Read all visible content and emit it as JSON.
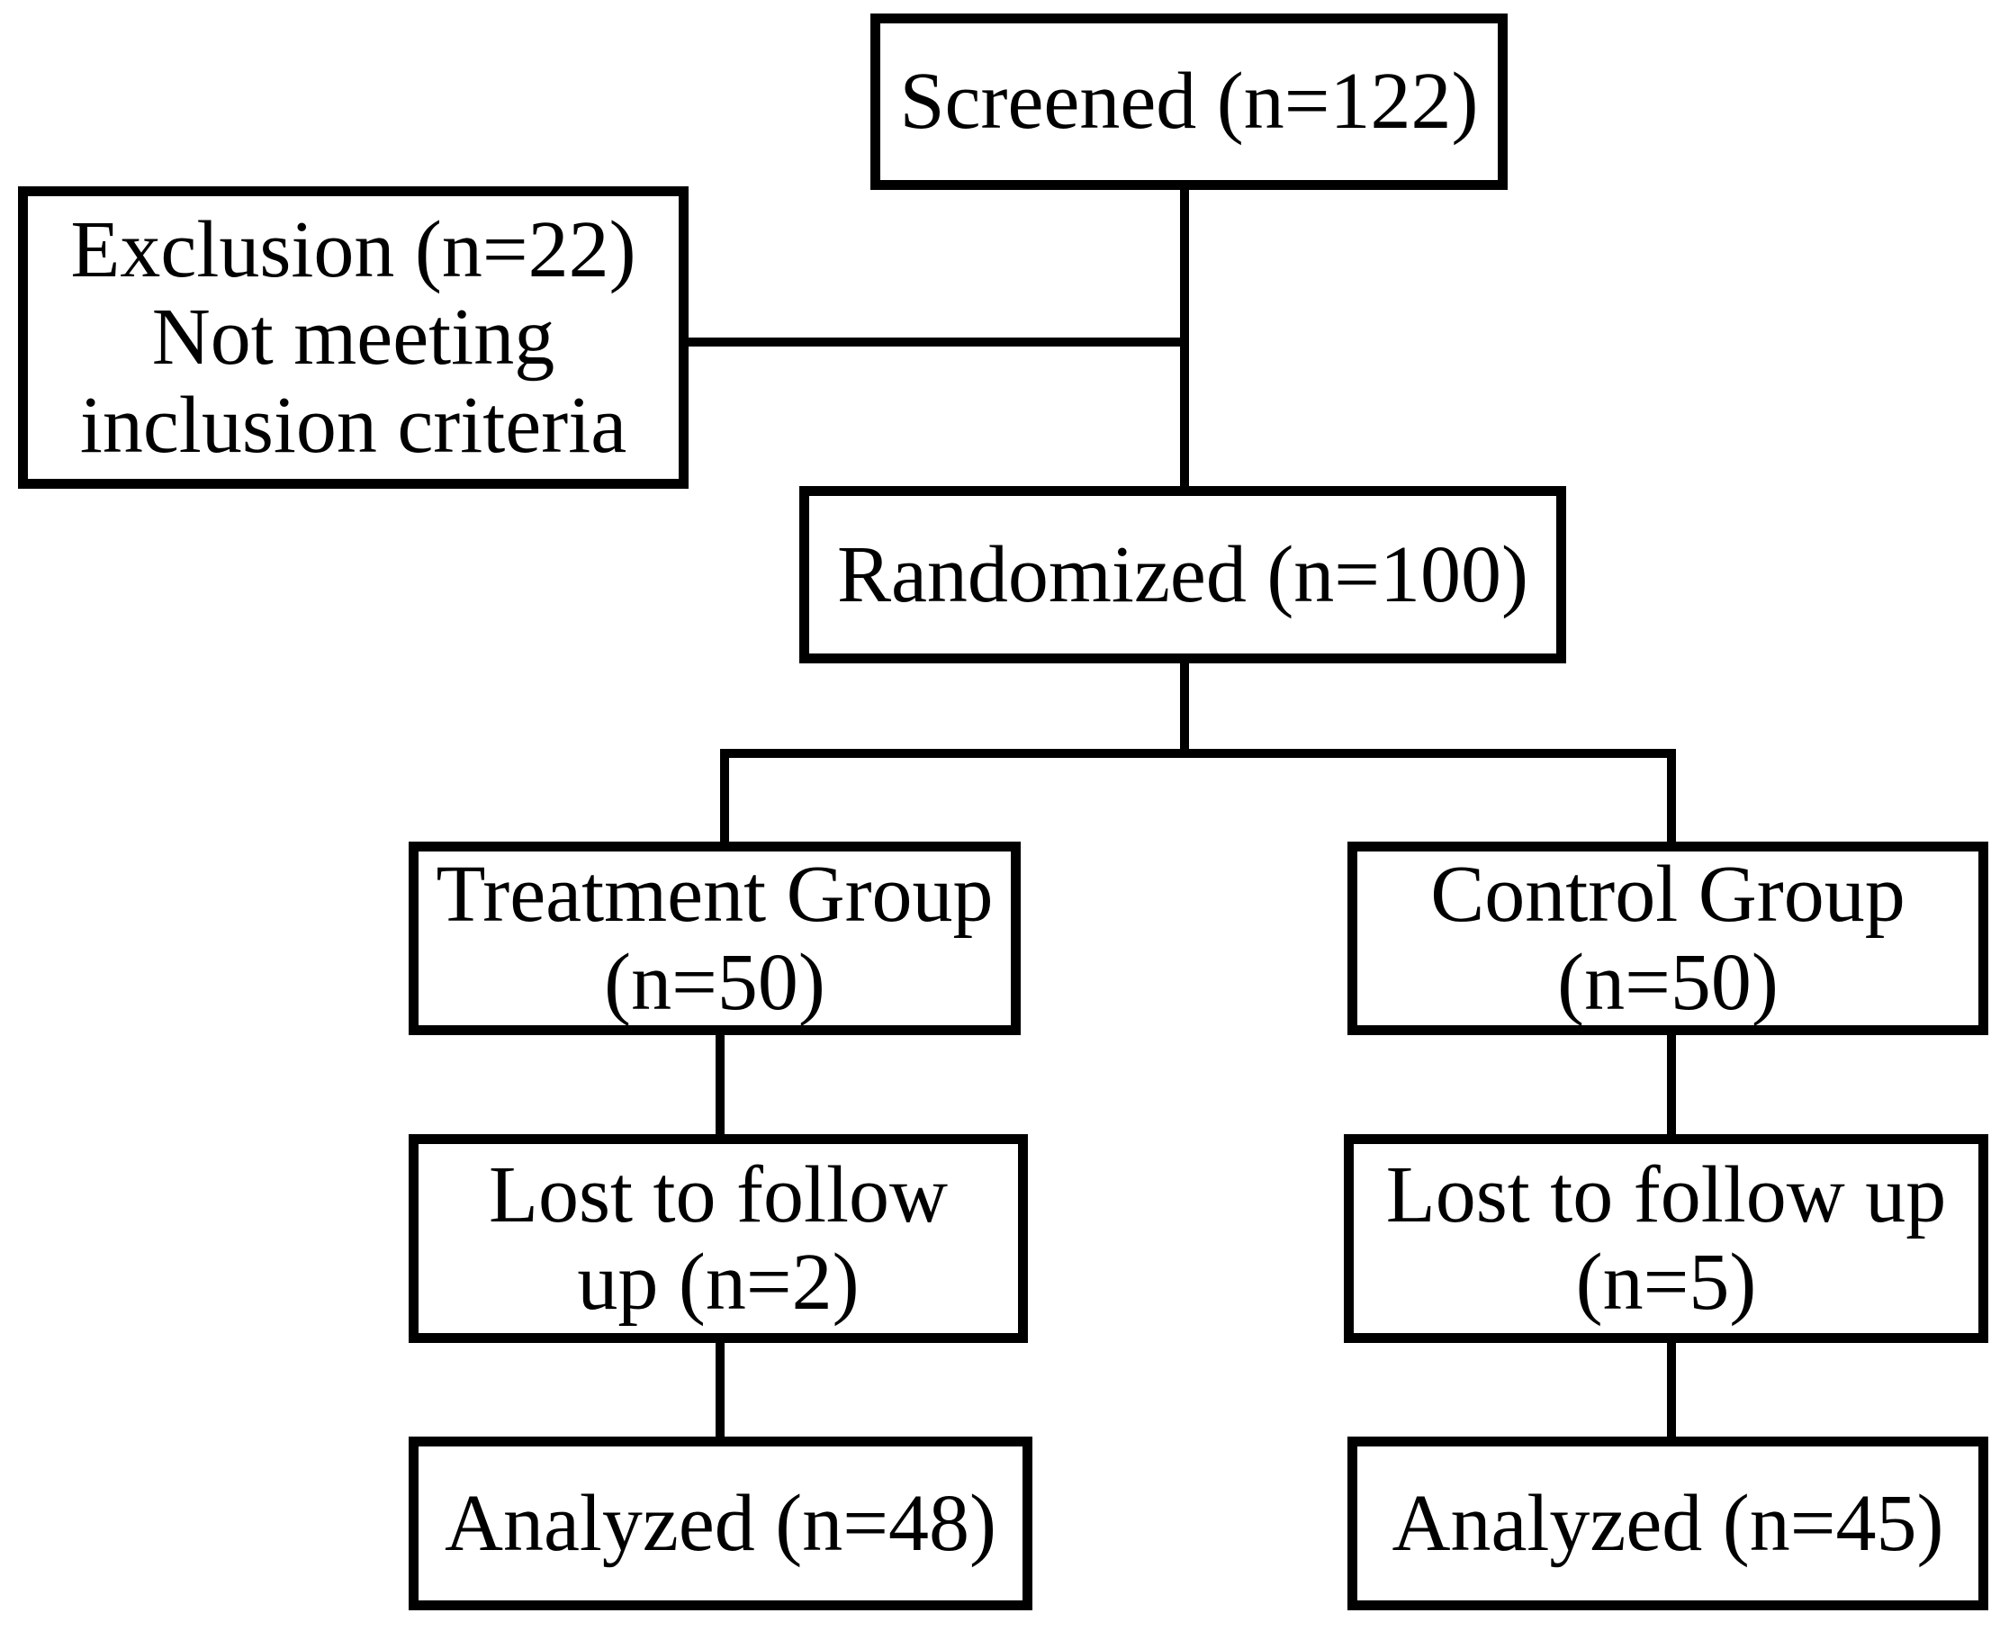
{
  "colors": {
    "background": "#ffffff",
    "line": "#000000",
    "text": "#000000"
  },
  "diagram": {
    "kind": "trial-flowchart",
    "nodes": {
      "screened": {
        "lines": [
          "Screened (n=122)"
        ]
      },
      "exclusion": {
        "lines": [
          "Exclusion (n=22)",
          "Not meeting",
          "inclusion criteria"
        ]
      },
      "randomized": {
        "lines": [
          "Randomized (n=100)"
        ]
      },
      "treatment": {
        "lines": [
          "Treatment Group",
          "(n=50)"
        ]
      },
      "control": {
        "lines": [
          "Control Group",
          "(n=50)"
        ]
      },
      "lost_treatment": {
        "lines": [
          "Lost to follow",
          "up (n=2)"
        ]
      },
      "lost_control": {
        "lines": [
          "Lost to follow up",
          "(n=5)"
        ]
      },
      "analyzed_treatment": {
        "lines": [
          "Analyzed (n=48)"
        ]
      },
      "analyzed_control": {
        "lines": [
          "Analyzed (n=45)"
        ]
      }
    },
    "edges": [
      {
        "from": "screened",
        "to": "exclusion"
      },
      {
        "from": "screened",
        "to": "randomized"
      },
      {
        "from": "randomized",
        "to": "treatment"
      },
      {
        "from": "randomized",
        "to": "control"
      },
      {
        "from": "treatment",
        "to": "lost_treatment"
      },
      {
        "from": "lost_treatment",
        "to": "analyzed_treatment"
      },
      {
        "from": "control",
        "to": "lost_control"
      },
      {
        "from": "lost_control",
        "to": "analyzed_control"
      }
    ]
  }
}
